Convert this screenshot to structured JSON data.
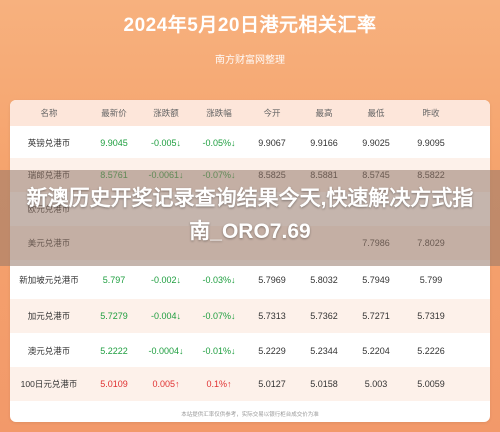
{
  "header": {
    "title": "2024年5月20日港元相关汇率",
    "subtitle": "南方财富网整理"
  },
  "table": {
    "columns": [
      "名称",
      "最新价",
      "涨跌额",
      "涨跌幅",
      "今开",
      "最高",
      "最低",
      "昨收"
    ],
    "rows": [
      {
        "name": "英镑兑港币",
        "latest": "9.9045",
        "change": "-0.005↓",
        "pct": "-0.05%↓",
        "open": "9.9067",
        "high": "9.9166",
        "low": "9.9025",
        "prev": "9.9095",
        "dir": "down"
      },
      {
        "name": "瑞郎兑港币",
        "latest": "8.5761",
        "change": "-0.0061↓",
        "pct": "-0.07%↓",
        "open": "8.5825",
        "high": "8.5881",
        "low": "8.5745",
        "prev": "8.5822",
        "dir": "down"
      },
      {
        "name": "欧元兑港币",
        "latest": "",
        "change": "",
        "pct": "",
        "open": "",
        "high": "",
        "low": "",
        "prev": "",
        "dir": "down"
      },
      {
        "name": "美元兑港币",
        "latest": "",
        "change": "",
        "pct": "",
        "open": "",
        "high": "",
        "low": "7.7986",
        "prev": "7.8029",
        "dir": "down"
      },
      {
        "name": "新加坡元兑港币",
        "latest": "5.797",
        "change": "-0.002↓",
        "pct": "-0.03%↓",
        "open": "5.7969",
        "high": "5.8032",
        "low": "5.7949",
        "prev": "5.799",
        "dir": "down"
      },
      {
        "name": "加元兑港币",
        "latest": "5.7279",
        "change": "-0.004↓",
        "pct": "-0.07%↓",
        "open": "5.7313",
        "high": "5.7362",
        "low": "5.7271",
        "prev": "5.7319",
        "dir": "down"
      },
      {
        "name": "澳元兑港币",
        "latest": "5.2222",
        "change": "-0.0004↓",
        "pct": "-0.01%↓",
        "open": "5.2229",
        "high": "5.2344",
        "low": "5.2204",
        "prev": "5.2226",
        "dir": "down"
      },
      {
        "name": "100日元兑港币",
        "latest": "5.0109",
        "change": "0.005↑",
        "pct": "0.1%↑",
        "open": "5.0127",
        "high": "5.0158",
        "low": "5.003",
        "prev": "5.0059",
        "dir": "up"
      }
    ],
    "footnote": "本站提供汇率仅供参考，实际交易以银行柜台成交价为准"
  },
  "overlay": {
    "headline": "新澳历史开奖记录查询结果今天,快速解决方式指南_ORO7.69"
  },
  "colors": {
    "up": "#e03131",
    "down": "#1e9e3f",
    "header_bg": "#fde6da",
    "page_bg": "#f5a36d"
  }
}
